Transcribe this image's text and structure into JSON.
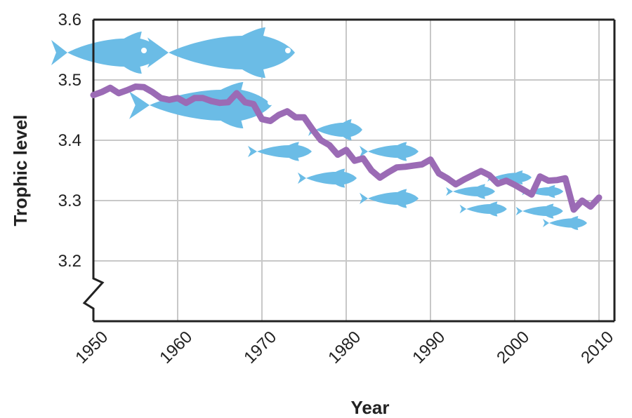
{
  "chart_data": {
    "type": "line",
    "title": "",
    "xlabel": "Year",
    "ylabel": "Trophic level",
    "xlim": [
      1950,
      2010
    ],
    "ylim": [
      3.1,
      3.6
    ],
    "y_axis_break": true,
    "grid": true,
    "x_ticks": [
      "1950",
      "1960",
      "1970",
      "1980",
      "1990",
      "2000",
      "2010"
    ],
    "y_ticks": [
      "3.2",
      "3.3",
      "3.4",
      "3.5",
      "3.6"
    ],
    "line_color": "#9b6bb5",
    "fish_color": "#6bbce6",
    "series": [
      {
        "name": "",
        "x": [
          1950,
          1951,
          1952,
          1953,
          1954,
          1955,
          1956,
          1957,
          1958,
          1959,
          1960,
          1961,
          1962,
          1963,
          1964,
          1965,
          1966,
          1967,
          1968,
          1969,
          1970,
          1971,
          1972,
          1973,
          1974,
          1975,
          1976,
          1977,
          1978,
          1979,
          1980,
          1981,
          1982,
          1983,
          1984,
          1985,
          1986,
          1987,
          1988,
          1989,
          1990,
          1991,
          1992,
          1993,
          1994,
          1995,
          1996,
          1997,
          1998,
          1999,
          2000,
          2001,
          2002,
          2003,
          2004,
          2005,
          2006,
          2007,
          2008,
          2009,
          2010
        ],
        "values": [
          3.475,
          3.48,
          3.487,
          3.478,
          3.483,
          3.489,
          3.488,
          3.48,
          3.47,
          3.467,
          3.47,
          3.462,
          3.47,
          3.47,
          3.465,
          3.462,
          3.463,
          3.478,
          3.463,
          3.46,
          3.435,
          3.432,
          3.442,
          3.448,
          3.438,
          3.438,
          3.418,
          3.4,
          3.392,
          3.376,
          3.384,
          3.366,
          3.37,
          3.35,
          3.338,
          3.347,
          3.355,
          3.356,
          3.358,
          3.36,
          3.368,
          3.345,
          3.337,
          3.327,
          3.335,
          3.342,
          3.349,
          3.342,
          3.328,
          3.333,
          3.326,
          3.318,
          3.31,
          3.34,
          3.333,
          3.334,
          3.337,
          3.285,
          3.3,
          3.29,
          3.305
        ]
      }
    ]
  }
}
